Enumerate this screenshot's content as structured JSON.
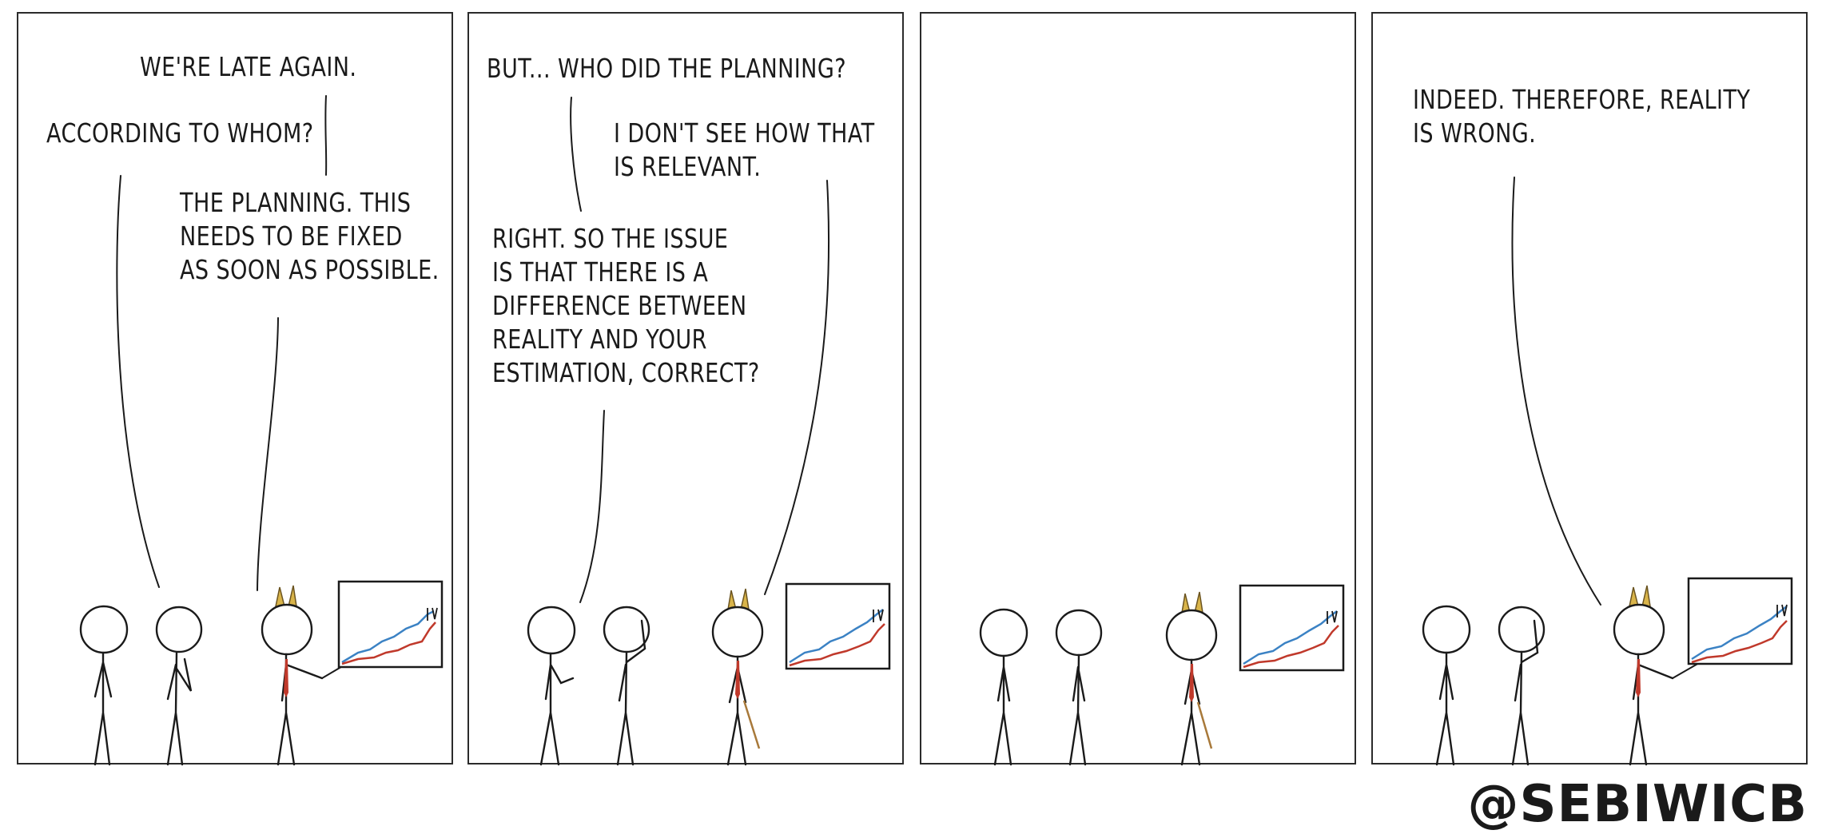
{
  "panels": [
    {
      "speech": {
        "late": "WE'RE LATE AGAIN.",
        "whom": "ACCORDING TO WHOM?",
        "planning": "THE PLANNING. THIS\nNEEDS TO BE FIXED\nAS SOON AS POSSIBLE."
      }
    },
    {
      "speech": {
        "who": "BUT... WHO DID THE PLANNING?",
        "relevant": "I DON'T SEE HOW THAT\nIS RELEVANT.",
        "right": "RIGHT. SO THE ISSUE\nIS THAT THERE IS A\nDIFFERENCE BETWEEN\nREALITY AND YOUR\nESTIMATION, CORRECT?"
      }
    },
    {
      "speech": {}
    },
    {
      "speech": {
        "indeed": "INDEED. THEREFORE, REALITY\nIS WRONG."
      }
    }
  ],
  "credit": "@SEBIWICB",
  "colors": {
    "ink": "#1a1a1a",
    "horns": "#d9b44a",
    "tie": "#c0392b",
    "chart_blue": "#3b82c4",
    "chart_red": "#c0392b",
    "pointer": "#a8793a"
  }
}
